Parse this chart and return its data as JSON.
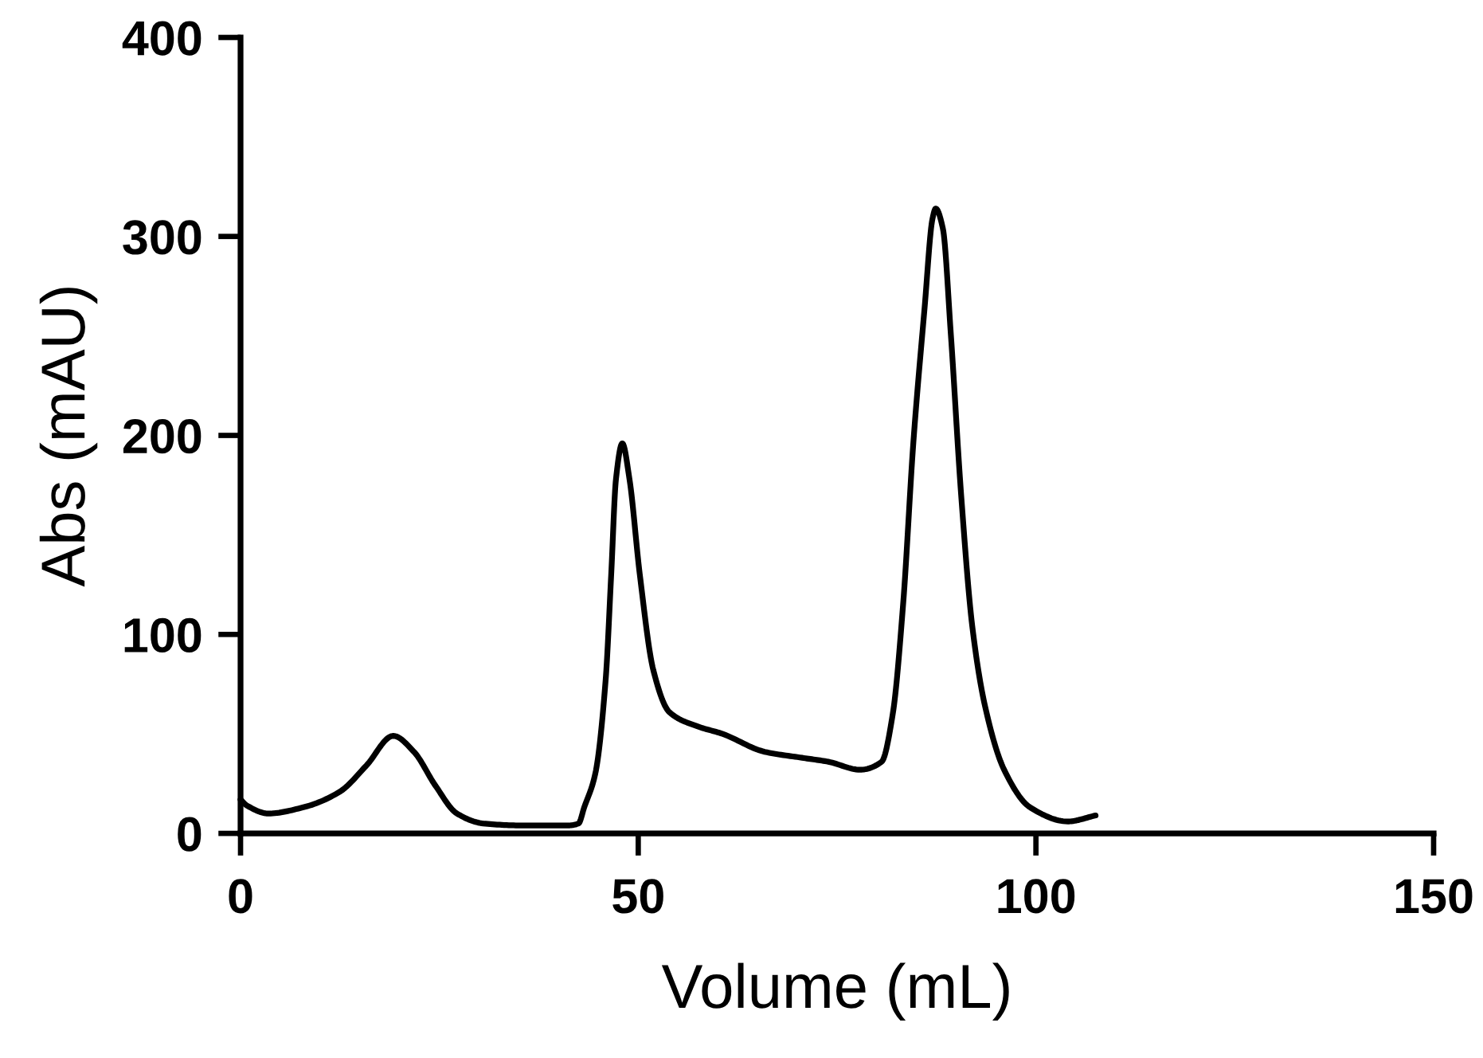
{
  "chart_data": {
    "type": "line",
    "xlabel": "Volume (mL)",
    "ylabel": "Abs (mAU)",
    "x": [
      0,
      0.8,
      3.5,
      7.8,
      12.5,
      15.8,
      19.2,
      21.8,
      24.5,
      27.2,
      30.5,
      35.2,
      41.2,
      42.5,
      43.2,
      44.6,
      45.9,
      46.6,
      47.2,
      48.0,
      48.9,
      50.2,
      51.9,
      53.9,
      57.3,
      60.6,
      65.9,
      70.6,
      73.9,
      77.9,
      80.6,
      82.0,
      83.3,
      84.6,
      86.0,
      87.0,
      87.4,
      88.3,
      89.3,
      90.6,
      92.0,
      93.6,
      96.0,
      99.3,
      104.0,
      107.5
    ],
    "values": [
      17,
      14,
      10,
      13,
      21,
      34,
      49,
      41,
      24,
      10,
      5,
      4,
      4,
      5,
      13,
      30,
      77,
      130,
      178,
      196,
      178,
      130,
      82,
      61,
      54,
      50,
      41,
      38,
      36,
      32,
      36,
      60,
      115,
      197,
      264,
      309,
      314,
      304,
      251,
      170,
      104,
      64,
      32,
      13,
      6,
      9
    ],
    "color": "#000000",
    "line_style": "solid",
    "xlim": [
      0,
      150
    ],
    "ylim": [
      0,
      400
    ],
    "xticks": [
      0,
      50,
      100,
      150
    ],
    "yticks": [
      0,
      100,
      200,
      300,
      400
    ],
    "grid": false,
    "legend": false
  }
}
